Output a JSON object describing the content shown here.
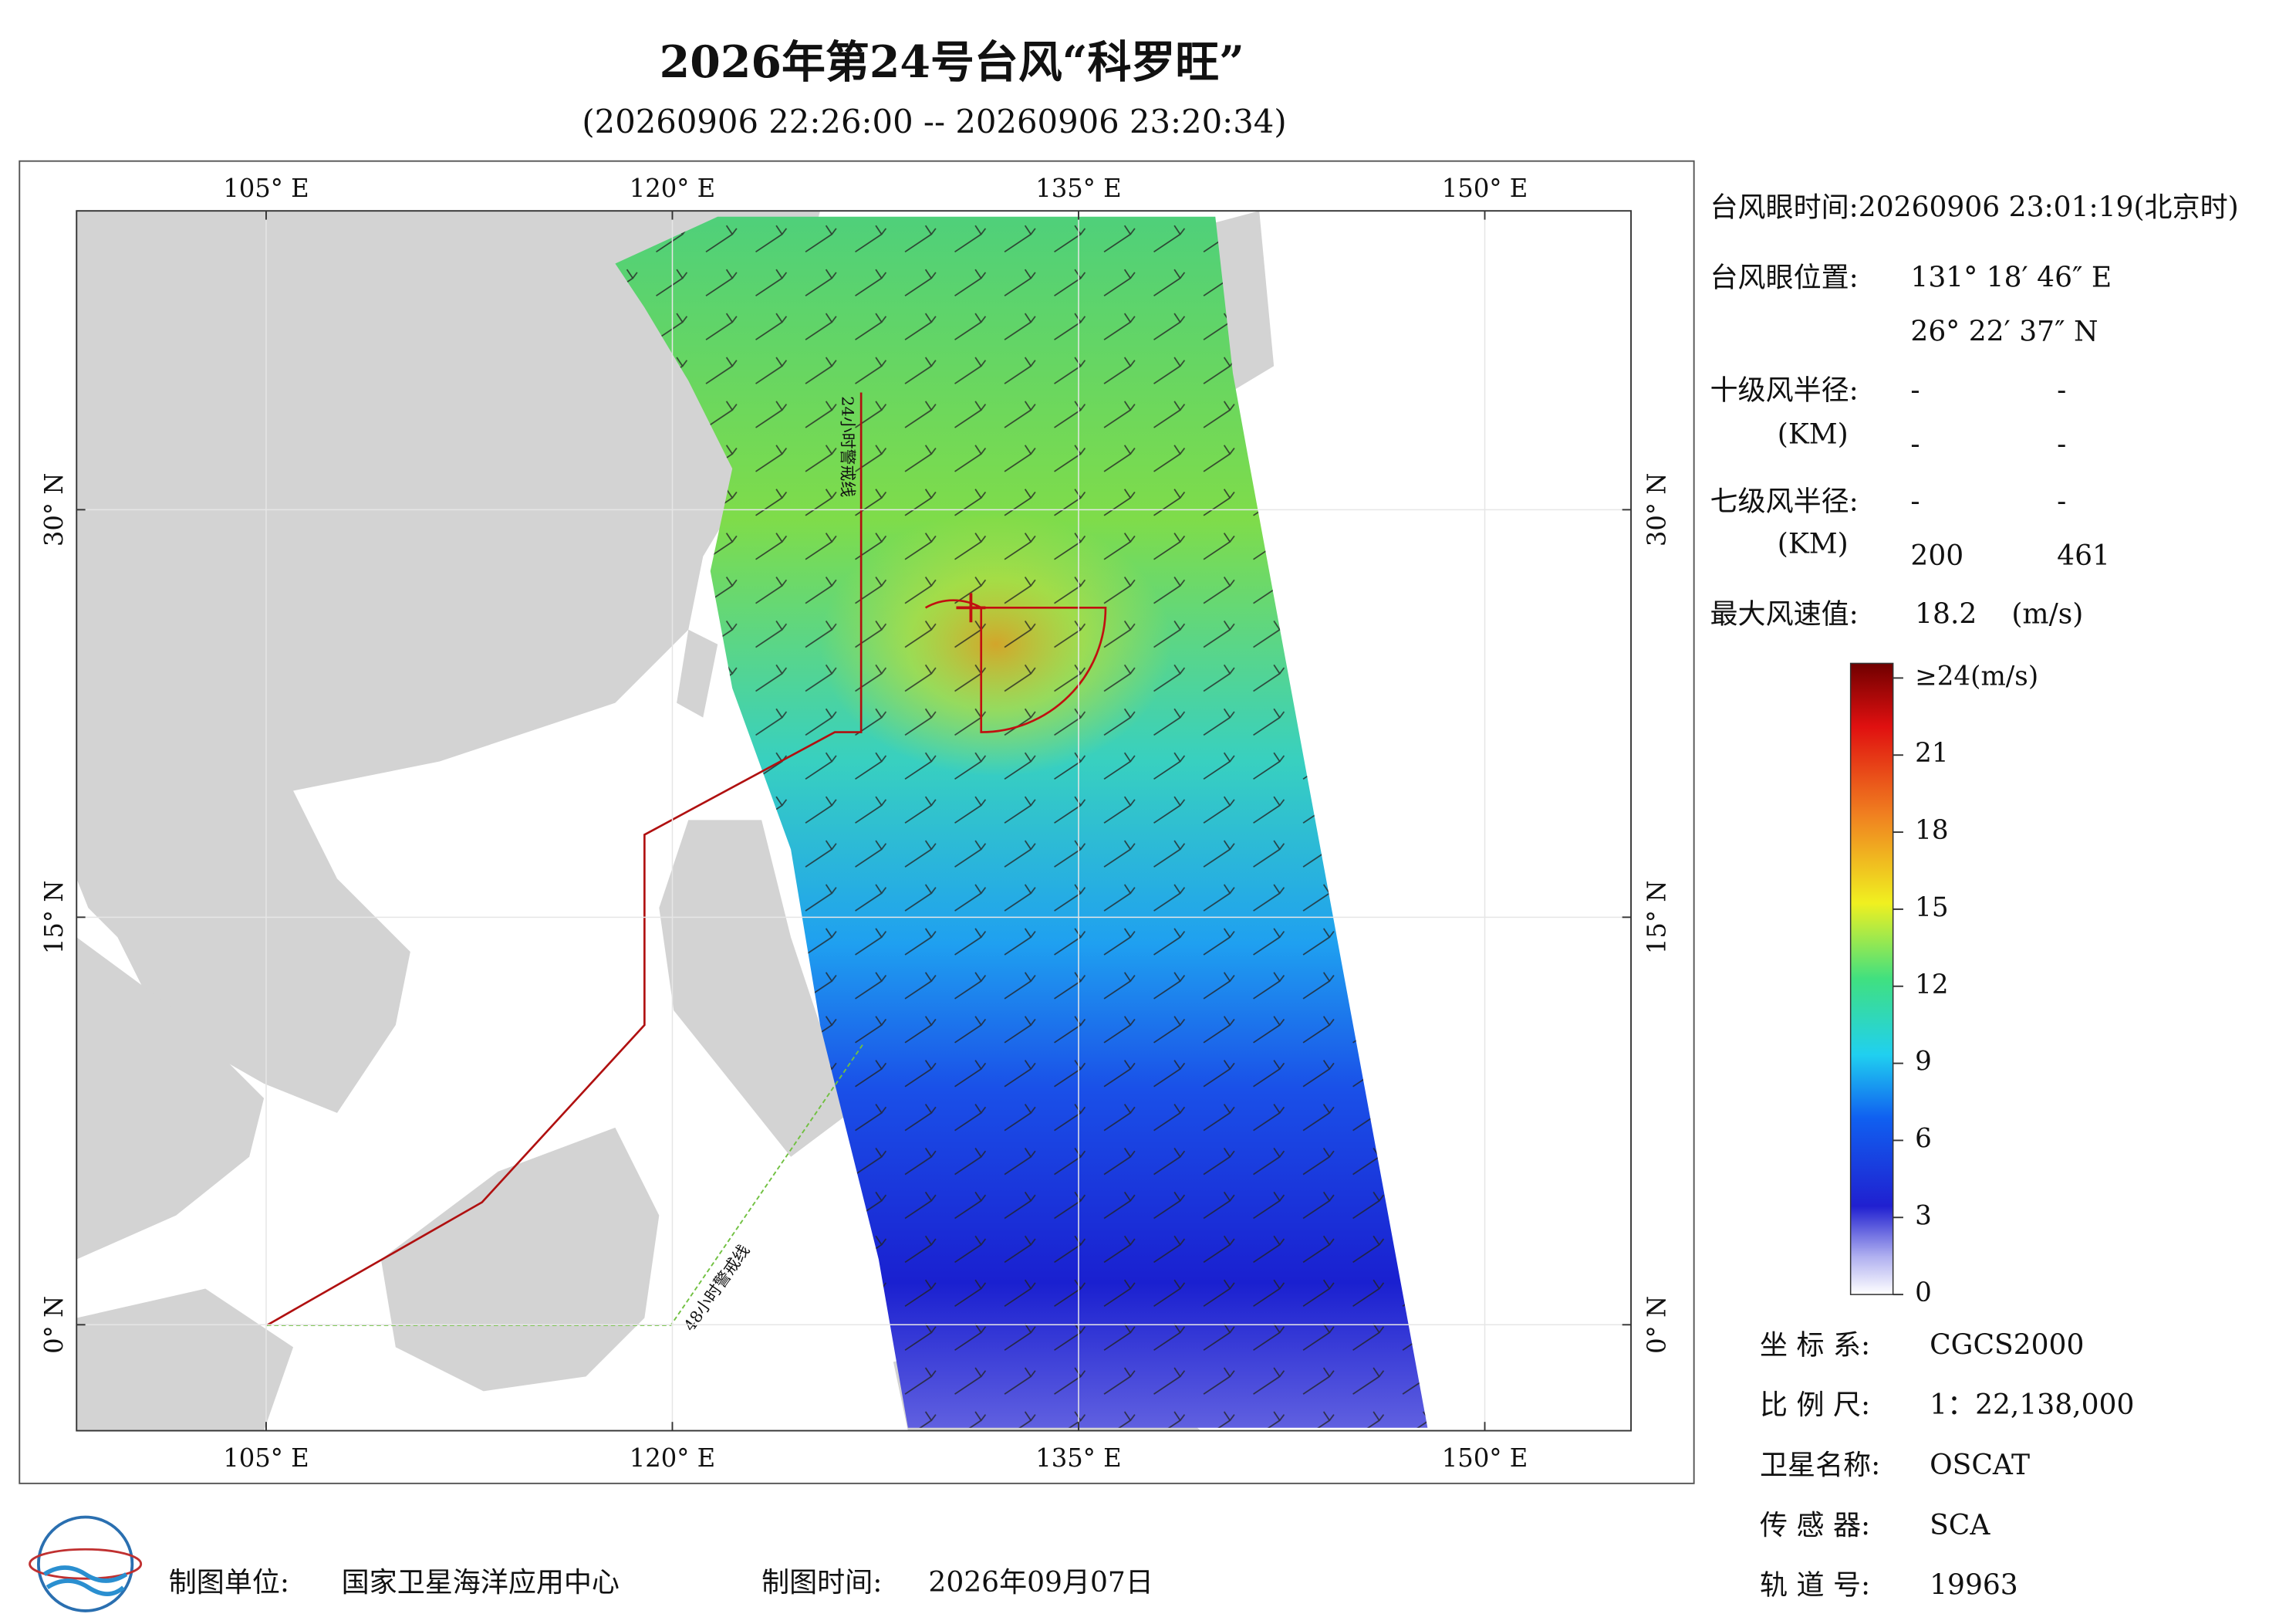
{
  "header": {
    "title": "2026年第24号台风“科罗旺”",
    "subtitle": "(20260906 22:26:00 -- 20260906 23:20:34)"
  },
  "map": {
    "lonlim": [
      98,
      155.4
    ],
    "latlim": [
      -3.9,
      41
    ],
    "lon_ticks": [
      {
        "value": 105,
        "label": "105° E"
      },
      {
        "value": 120,
        "label": "120° E"
      },
      {
        "value": 135,
        "label": "135° E"
      },
      {
        "value": 150,
        "label": "150° E"
      }
    ],
    "lat_ticks": [
      {
        "value": 0,
        "label": "0° N"
      },
      {
        "value": 15,
        "label": "15° N"
      },
      {
        "value": 30,
        "label": "30° N"
      }
    ],
    "annotations": [
      "24小时警戒线",
      "48小时警戒线"
    ]
  },
  "info": {
    "eye_time": "台风眼时间:20260906 23:01:19(北京时)",
    "eye_position_label": "台风眼位置:",
    "eye_lon": "131° 18′ 46″ E",
    "eye_lat": "26° 22′ 37″ N",
    "r10_label": "十级风半径:",
    "r10_unit": "(KM)",
    "r10_values": [
      "-",
      "-",
      "-",
      "-"
    ],
    "r7_label": "七级风半径:",
    "r7_unit": "(KM)",
    "r7_values": [
      "-",
      "-",
      200,
      461
    ],
    "max_wind_label": "最大风速值:",
    "max_wind": 18.2,
    "max_wind_unit": "(m/s)"
  },
  "colorbar": {
    "lim": [
      0,
      24
    ],
    "ticks": [
      0,
      3,
      6,
      9,
      12,
      15,
      18,
      21,
      {
        "value": 24,
        "label": "≥24(m/s)"
      }
    ]
  },
  "meta": [
    {
      "label": "坐 标 系:",
      "value": "CGCS2000"
    },
    {
      "label": "比 例 尺:",
      "value": "1：22,138,000"
    },
    {
      "label": "卫星名称:",
      "value": "OSCAT"
    },
    {
      "label": "传 感 器:",
      "value": "SCA"
    },
    {
      "label": "轨 道 号:",
      "value": 19963
    }
  ],
  "footer": {
    "unit_label": "制图单位:",
    "unit": "国家卫星海洋应用中心",
    "time_label": "制图时间:",
    "time": "2026年09月07日"
  }
}
